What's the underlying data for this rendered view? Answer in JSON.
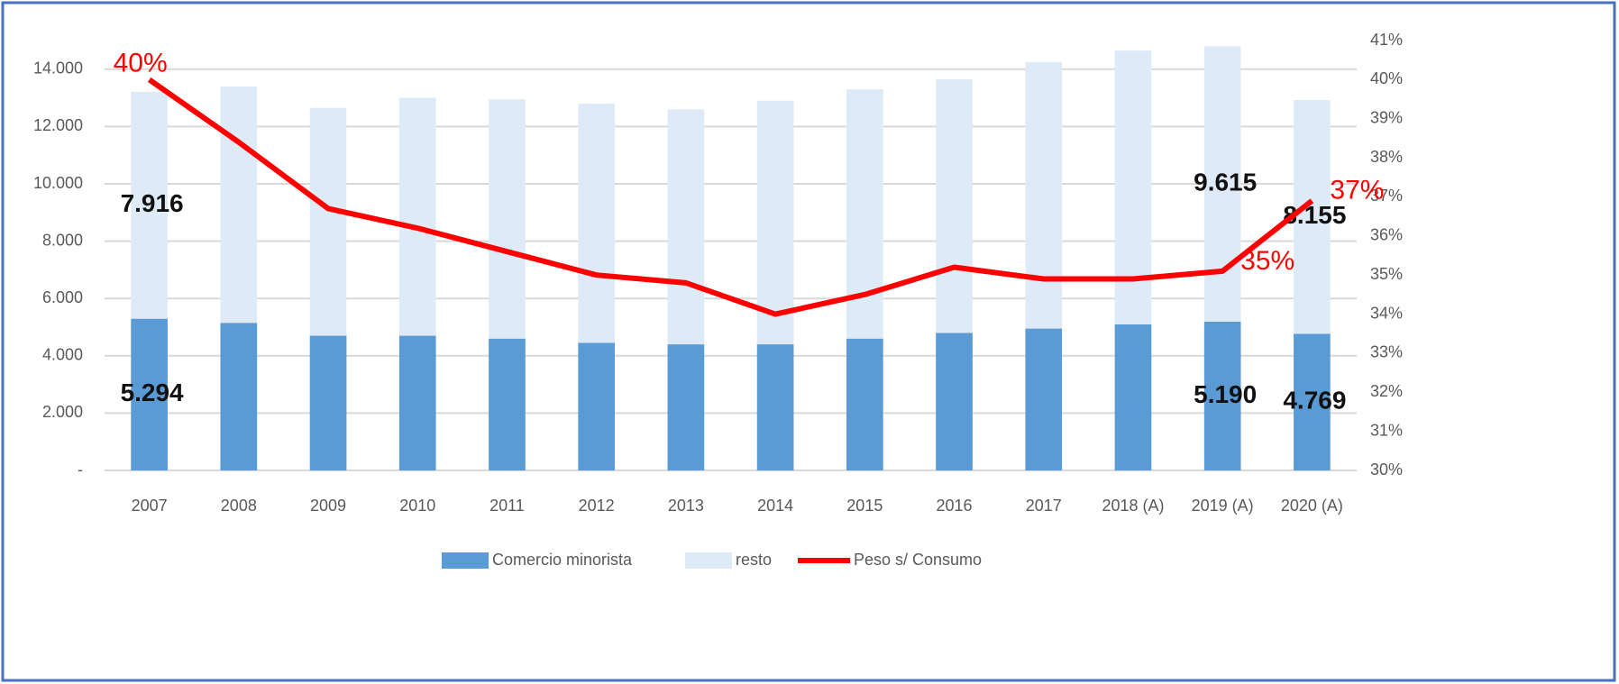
{
  "chart_data": {
    "type": "bar",
    "stacked": true,
    "categories": [
      "2007",
      "2008",
      "2009",
      "2010",
      "2011",
      "2012",
      "2013",
      "2014",
      "2015",
      "2016",
      "2017",
      "2018 (A)",
      "2019 (A)",
      "2020 (A)"
    ],
    "series": [
      {
        "name": "Comercio minorista",
        "color": "#5b9bd5",
        "values": [
          5294,
          5150,
          4700,
          4700,
          4600,
          4450,
          4400,
          4400,
          4600,
          4800,
          4950,
          5100,
          5190,
          4769
        ],
        "value_labels": [
          "5.294",
          null,
          null,
          null,
          null,
          null,
          null,
          null,
          null,
          null,
          null,
          null,
          "5.190",
          "4.769"
        ]
      },
      {
        "name": "resto",
        "color": "#deebf7",
        "values": [
          7916,
          8250,
          7950,
          8300,
          8350,
          8350,
          8200,
          8500,
          8700,
          8850,
          9300,
          9550,
          9615,
          8155
        ],
        "value_labels": [
          "7.916",
          null,
          null,
          null,
          null,
          null,
          null,
          null,
          null,
          null,
          null,
          null,
          "9.615",
          "8.155"
        ]
      },
      {
        "name": "Peso s/ Consumo",
        "color": "#ff0000",
        "type": "line",
        "axis": "y2",
        "values": [
          40,
          38.4,
          36.7,
          36.2,
          35.6,
          35.0,
          34.8,
          34.0,
          34.5,
          35.2,
          34.9,
          34.9,
          35.1,
          36.9
        ],
        "value_labels": [
          "40%",
          null,
          null,
          null,
          null,
          null,
          null,
          null,
          null,
          null,
          null,
          null,
          "35%",
          "37%"
        ]
      }
    ],
    "ylim": [
      0,
      15000
    ],
    "yticks": [
      {
        "value": 0,
        "label": "-"
      },
      {
        "value": 2000,
        "label": "2.000"
      },
      {
        "value": 4000,
        "label": "4.000"
      },
      {
        "value": 6000,
        "label": "6.000"
      },
      {
        "value": 8000,
        "label": "8.000"
      },
      {
        "value": 10000,
        "label": "10.000"
      },
      {
        "value": 12000,
        "label": "12.000"
      },
      {
        "value": 14000,
        "label": "14.000"
      }
    ],
    "y2lim": [
      30,
      41
    ],
    "y2ticks": [
      {
        "value": 30,
        "label": "30%"
      },
      {
        "value": 31,
        "label": "31%"
      },
      {
        "value": 32,
        "label": "32%"
      },
      {
        "value": 33,
        "label": "33%"
      },
      {
        "value": 34,
        "label": "34%"
      },
      {
        "value": 35,
        "label": "35%"
      },
      {
        "value": 36,
        "label": "36%"
      },
      {
        "value": 37,
        "label": "37%"
      },
      {
        "value": 38,
        "label": "38%"
      },
      {
        "value": 39,
        "label": "39%"
      },
      {
        "value": 40,
        "label": "40%"
      },
      {
        "value": 41,
        "label": "41%"
      }
    ],
    "grid": true,
    "legend": "bottom"
  }
}
